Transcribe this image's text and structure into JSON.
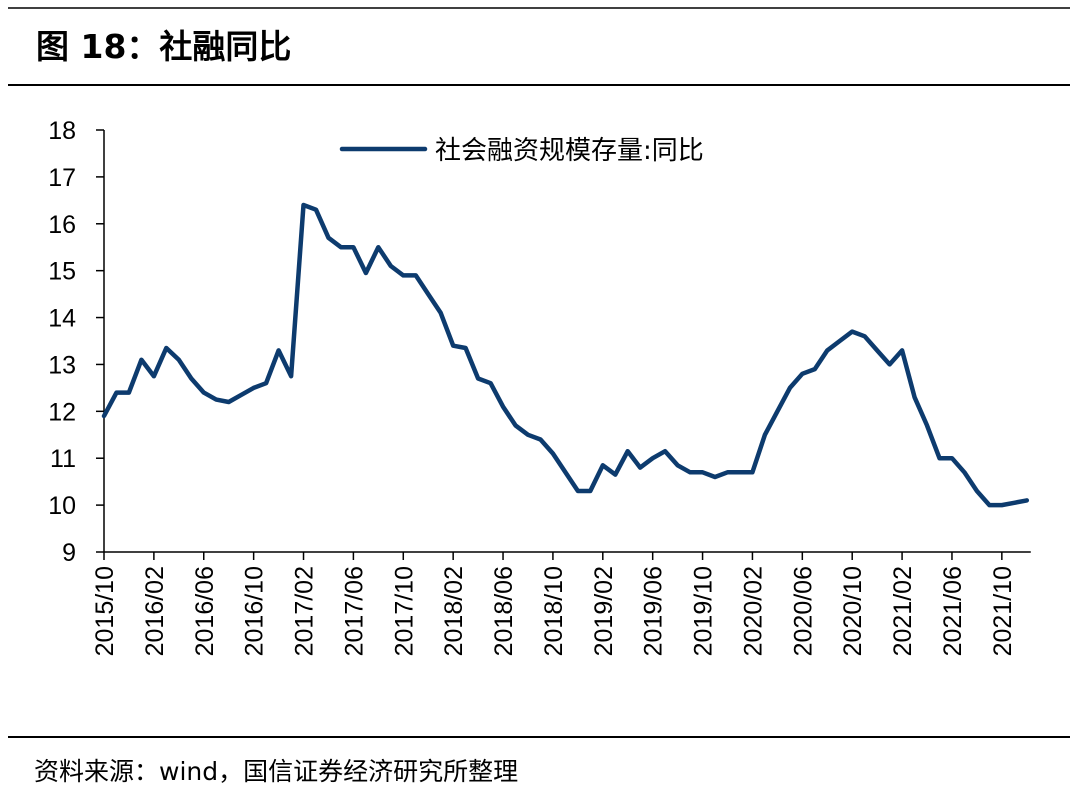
{
  "chart_data": {
    "type": "line",
    "title": "图 18：社融同比",
    "source": "资料来源：wind，国信证券经济研究所整理",
    "categories": [
      "2015/10",
      null,
      null,
      null,
      "2016/02",
      null,
      null,
      null,
      "2016/06",
      null,
      null,
      null,
      "2016/10",
      null,
      null,
      null,
      "2017/02",
      null,
      null,
      null,
      "2017/06",
      null,
      null,
      null,
      "2017/10",
      null,
      null,
      null,
      "2018/02",
      null,
      null,
      null,
      "2018/06",
      null,
      null,
      null,
      "2018/10",
      null,
      null,
      null,
      "2019/02",
      null,
      null,
      null,
      "2019/06",
      null,
      null,
      null,
      "2019/10",
      null,
      null,
      null,
      "2020/02",
      null,
      null,
      null,
      "2020/06",
      null,
      null,
      null,
      "2020/10",
      null,
      null,
      null,
      "2021/02",
      null,
      null,
      null,
      "2021/06",
      null,
      null,
      null,
      "2021/10",
      null,
      null
    ],
    "series": [
      {
        "name": "社会融资规模存量:同比",
        "color": "#0d3b6e",
        "values": [
          11.9,
          12.4,
          12.4,
          13.1,
          12.75,
          13.35,
          13.1,
          12.7,
          12.4,
          12.25,
          12.2,
          12.35,
          12.5,
          12.6,
          13.3,
          12.75,
          16.4,
          16.3,
          15.7,
          15.5,
          15.5,
          14.95,
          15.5,
          15.1,
          14.9,
          14.9,
          14.5,
          14.1,
          13.4,
          13.35,
          12.7,
          12.6,
          12.1,
          11.7,
          11.5,
          11.4,
          11.1,
          10.7,
          10.3,
          10.3,
          10.85,
          10.65,
          11.15,
          10.8,
          11.0,
          11.15,
          10.85,
          10.7,
          10.7,
          10.6,
          10.7,
          10.7,
          10.7,
          11.5,
          12.0,
          12.5,
          12.8,
          12.9,
          13.3,
          13.5,
          13.7,
          13.6,
          13.3,
          13.0,
          13.3,
          12.3,
          11.7,
          11.0,
          11.0,
          10.7,
          10.3,
          10.0,
          10.0,
          10.05,
          10.1
        ]
      }
    ],
    "ylim": [
      9,
      18
    ],
    "yticks": [
      9,
      10,
      11,
      12,
      13,
      14,
      15,
      16,
      17,
      18
    ],
    "grid": false,
    "legend": "top"
  }
}
